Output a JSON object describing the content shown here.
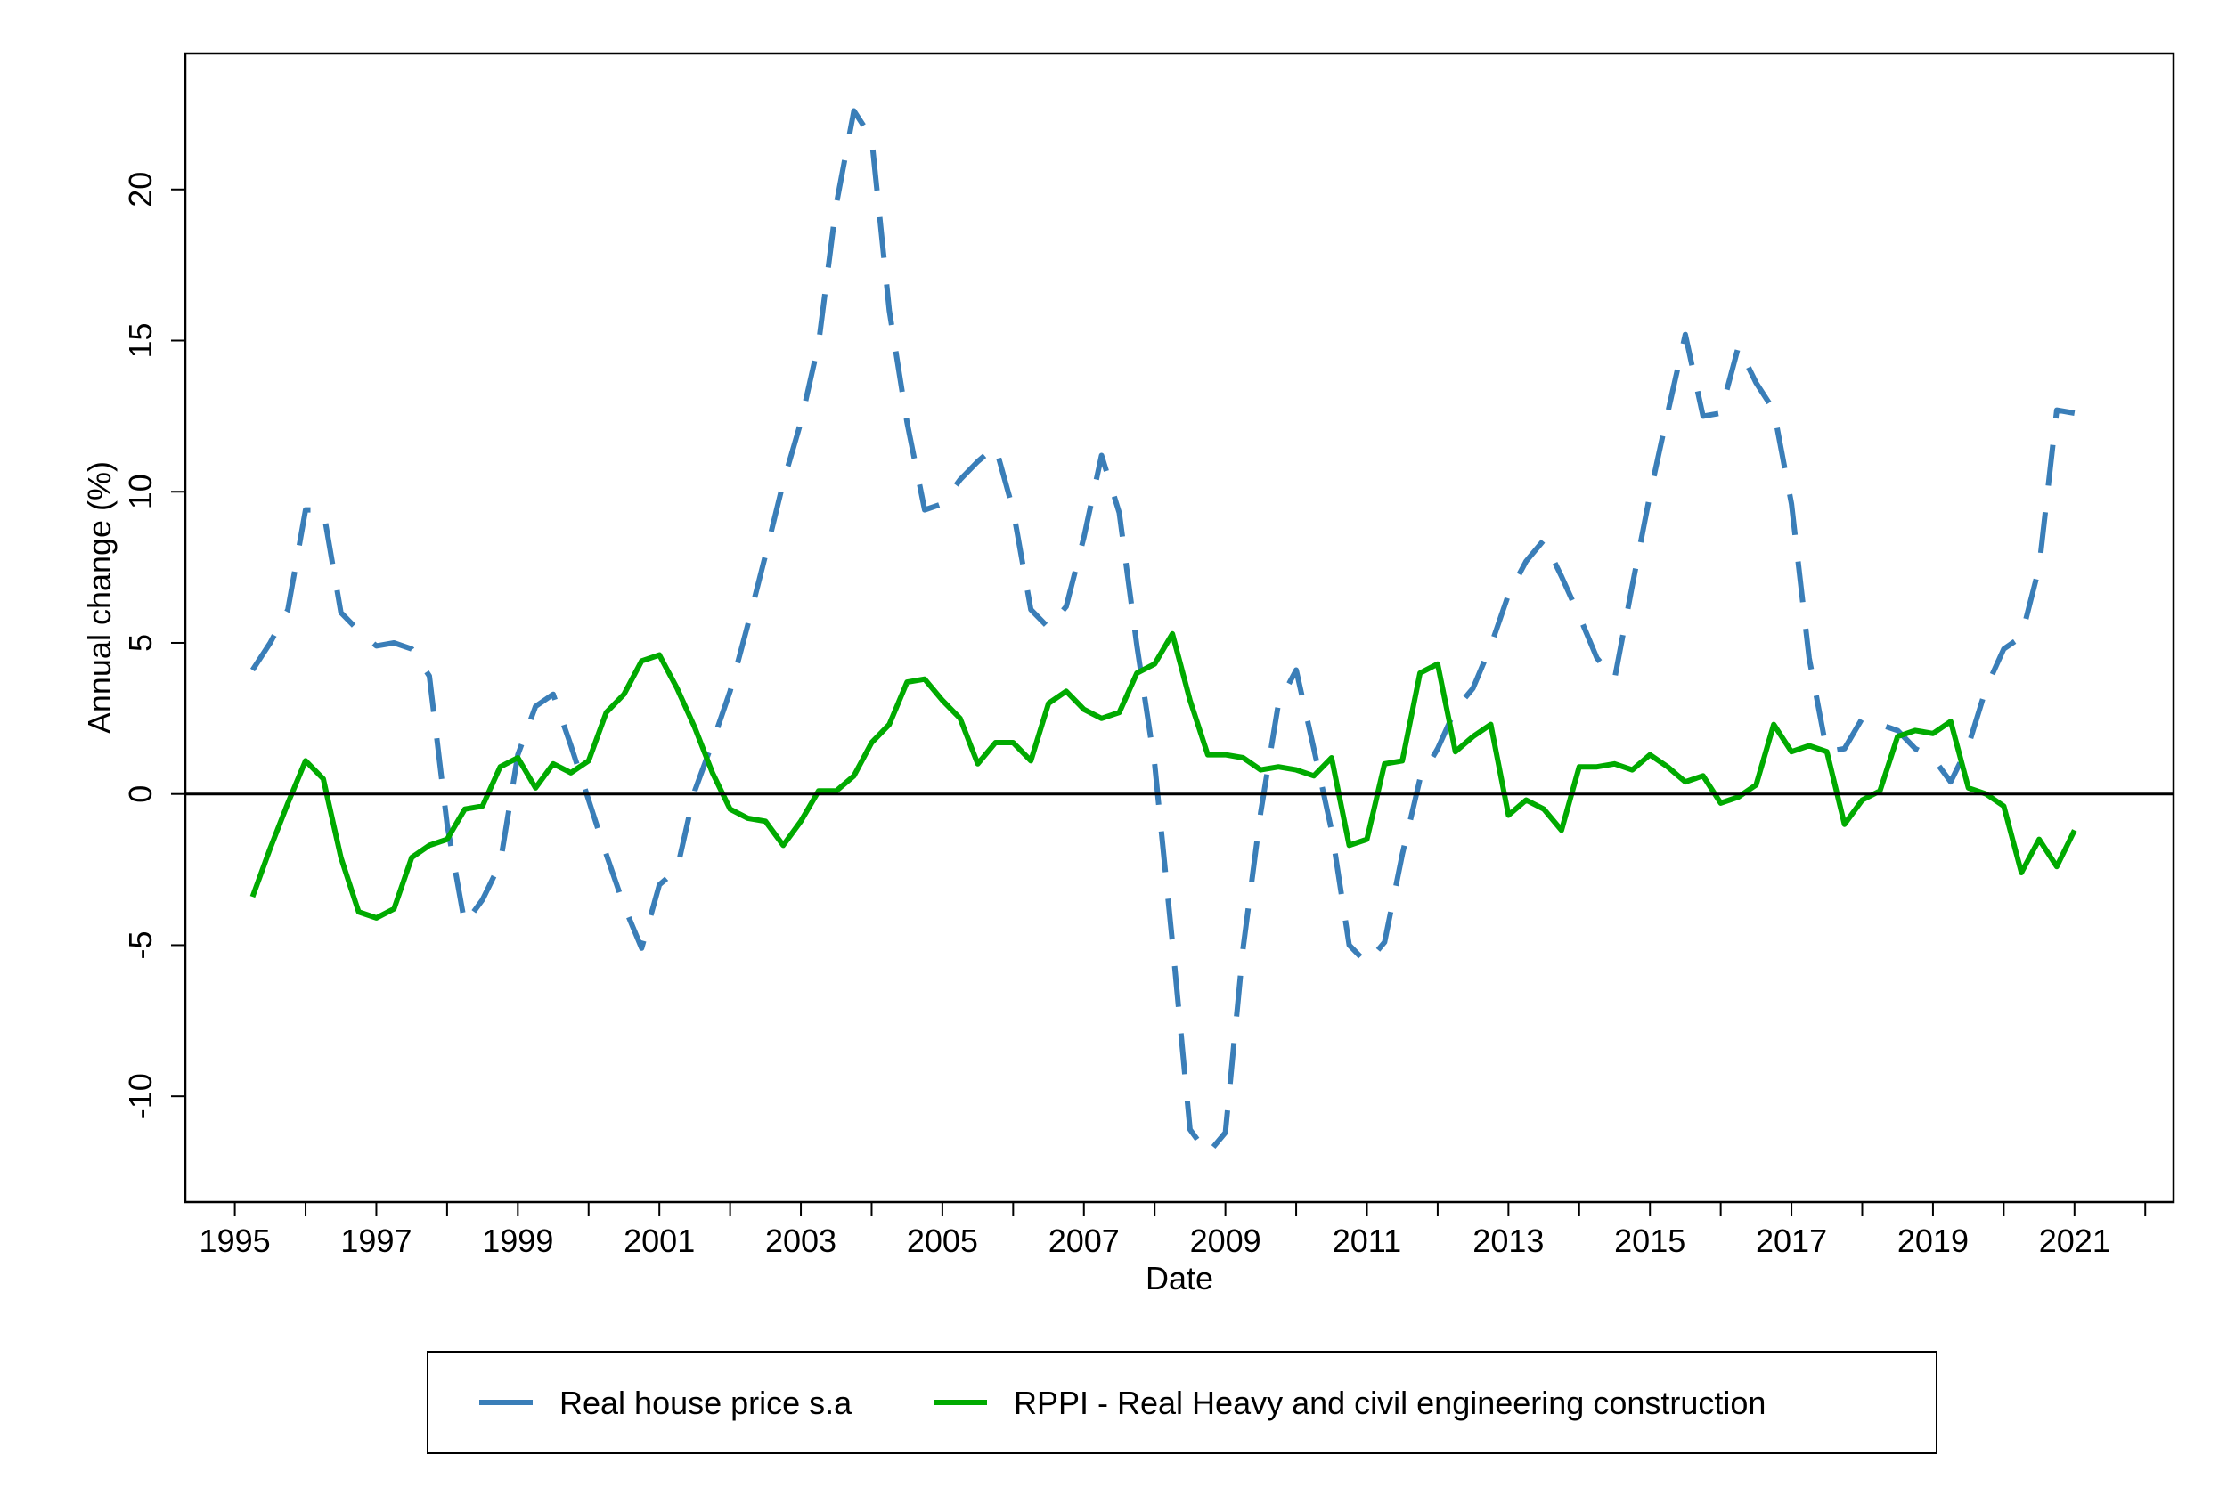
{
  "chart_data": {
    "type": "line",
    "title": "",
    "xlabel": "Date",
    "ylabel": "Annual change (%)",
    "xlim": [
      1994.3,
      2022.4
    ],
    "ylim": [
      -13.5,
      24.5
    ],
    "x_ticks": [
      "1995",
      "1997",
      "1999",
      "2001",
      "2003",
      "2005",
      "2007",
      "2009",
      "2011",
      "2013",
      "2015",
      "2017",
      "2019",
      "2021"
    ],
    "x_tick_values": [
      1995,
      1997,
      1999,
      2001,
      2003,
      2005,
      2007,
      2009,
      2011,
      2013,
      2015,
      2017,
      2019,
      2021
    ],
    "y_ticks": [
      "-10",
      "-5",
      "0",
      "5",
      "10",
      "15",
      "20"
    ],
    "y_tick_values": [
      -10,
      -5,
      0,
      5,
      10,
      15,
      20
    ],
    "reference_line_y": 0,
    "grid": false,
    "legend_position": "bottom",
    "series": [
      {
        "name": "Real house price s.a",
        "color": "#3a7eb8",
        "dash": "dashed",
        "x": [
          1995.25,
          1995.5,
          1995.75,
          1996.0,
          1996.25,
          1996.5,
          1996.75,
          1997.0,
          1997.25,
          1997.5,
          1997.75,
          1998.0,
          1998.25,
          1998.5,
          1998.75,
          1999.0,
          1999.25,
          1999.5,
          1999.75,
          2000.0,
          2000.25,
          2000.5,
          2000.75,
          2001.0,
          2001.25,
          2001.5,
          2001.75,
          2002.0,
          2002.25,
          2002.5,
          2002.75,
          2003.0,
          2003.25,
          2003.5,
          2003.75,
          2004.0,
          2004.25,
          2004.5,
          2004.75,
          2005.0,
          2005.25,
          2005.5,
          2005.75,
          2006.0,
          2006.25,
          2006.5,
          2006.75,
          2007.0,
          2007.25,
          2007.5,
          2007.75,
          2008.0,
          2008.25,
          2008.5,
          2008.75,
          2009.0,
          2009.25,
          2009.5,
          2009.75,
          2010.0,
          2010.25,
          2010.5,
          2010.75,
          2011.0,
          2011.25,
          2011.5,
          2011.75,
          2012.0,
          2012.25,
          2012.5,
          2012.75,
          2013.0,
          2013.25,
          2013.5,
          2013.75,
          2014.0,
          2014.25,
          2014.5,
          2014.75,
          2015.0,
          2015.25,
          2015.5,
          2015.75,
          2016.0,
          2016.25,
          2016.5,
          2016.75,
          2017.0,
          2017.25,
          2017.5,
          2017.75,
          2018.0,
          2018.25,
          2018.5,
          2018.75,
          2019.0,
          2019.25,
          2019.5,
          2019.75,
          2020.0,
          2020.25,
          2020.5,
          2020.75,
          2021.0
        ],
        "y": [
          4.1,
          5.0,
          6.1,
          9.4,
          9.4,
          6.0,
          5.4,
          4.9,
          5.0,
          4.8,
          3.9,
          -1.0,
          -4.3,
          -3.5,
          -2.3,
          1.3,
          2.9,
          3.3,
          1.6,
          -0.2,
          -2.0,
          -3.7,
          -5.1,
          -3.0,
          -2.5,
          0.1,
          1.7,
          3.4,
          5.6,
          7.9,
          10.3,
          12.3,
          14.9,
          19.5,
          22.6,
          21.7,
          16.0,
          12.3,
          9.4,
          9.6,
          10.4,
          11.0,
          11.5,
          9.4,
          6.1,
          5.5,
          6.2,
          8.5,
          11.2,
          9.3,
          4.9,
          1.0,
          -4.9,
          -11.1,
          -11.9,
          -11.2,
          -5.1,
          -0.6,
          3.0,
          4.1,
          1.5,
          -1.2,
          -5.0,
          -5.6,
          -4.9,
          -2.0,
          0.5,
          1.5,
          2.8,
          3.5,
          4.9,
          6.6,
          7.7,
          8.4,
          7.2,
          5.9,
          4.5,
          3.8,
          6.9,
          9.9,
          12.6,
          15.2,
          12.5,
          12.6,
          14.8,
          13.6,
          12.7,
          9.6,
          4.5,
          1.4,
          1.5,
          2.5,
          2.3,
          2.1,
          1.5,
          1.2,
          0.4,
          1.6,
          3.5,
          4.8,
          5.2,
          7.5,
          12.7,
          12.6
        ]
      },
      {
        "name": "RPPI - Real Heavy and civil engineering construction",
        "color": "#00aa00",
        "dash": "solid",
        "x": [
          1995.25,
          1995.5,
          1995.75,
          1996.0,
          1996.25,
          1996.5,
          1996.75,
          1997.0,
          1997.25,
          1997.5,
          1997.75,
          1998.0,
          1998.25,
          1998.5,
          1998.75,
          1999.0,
          1999.25,
          1999.5,
          1999.75,
          2000.0,
          2000.25,
          2000.5,
          2000.75,
          2001.0,
          2001.25,
          2001.5,
          2001.75,
          2002.0,
          2002.25,
          2002.5,
          2002.75,
          2003.0,
          2003.25,
          2003.5,
          2003.75,
          2004.0,
          2004.25,
          2004.5,
          2004.75,
          2005.0,
          2005.25,
          2005.5,
          2005.75,
          2006.0,
          2006.25,
          2006.5,
          2006.75,
          2007.0,
          2007.25,
          2007.5,
          2007.75,
          2008.0,
          2008.25,
          2008.5,
          2008.75,
          2009.0,
          2009.25,
          2009.5,
          2009.75,
          2010.0,
          2010.25,
          2010.5,
          2010.75,
          2011.0,
          2011.25,
          2011.5,
          2011.75,
          2012.0,
          2012.25,
          2012.5,
          2012.75,
          2013.0,
          2013.25,
          2013.5,
          2013.75,
          2014.0,
          2014.25,
          2014.5,
          2014.75,
          2015.0,
          2015.25,
          2015.5,
          2015.75,
          2016.0,
          2016.25,
          2016.5,
          2016.75,
          2017.0,
          2017.25,
          2017.5,
          2017.75,
          2018.0,
          2018.25,
          2018.5,
          2018.75,
          2019.0,
          2019.25,
          2019.5,
          2019.75,
          2020.0,
          2020.25,
          2020.5,
          2020.75,
          2021.0
        ],
        "y": [
          -3.4,
          -1.8,
          -0.3,
          1.1,
          0.5,
          -2.1,
          -3.9,
          -4.1,
          -3.8,
          -2.1,
          -1.7,
          -1.5,
          -0.5,
          -0.4,
          0.9,
          1.2,
          0.2,
          1.0,
          0.7,
          1.1,
          2.7,
          3.3,
          4.4,
          4.6,
          3.5,
          2.2,
          0.7,
          -0.5,
          -0.8,
          -0.9,
          -1.7,
          -0.9,
          0.1,
          0.1,
          0.6,
          1.7,
          2.3,
          3.7,
          3.8,
          3.1,
          2.5,
          1.0,
          1.7,
          1.7,
          1.1,
          3.0,
          3.4,
          2.8,
          2.5,
          2.7,
          4.0,
          4.3,
          5.3,
          3.1,
          1.3,
          1.3,
          1.2,
          0.8,
          0.9,
          0.8,
          0.6,
          1.2,
          -1.7,
          -1.5,
          1.0,
          1.1,
          4.0,
          4.3,
          1.4,
          1.9,
          2.3,
          -0.7,
          -0.2,
          -0.5,
          -1.2,
          0.9,
          0.9,
          1.0,
          0.8,
          1.3,
          0.9,
          0.4,
          0.6,
          -0.3,
          -0.1,
          0.3,
          2.3,
          1.4,
          1.6,
          1.4,
          -1.0,
          -0.2,
          0.1,
          1.9,
          2.1,
          2.0,
          2.4,
          0.2,
          0.0,
          -0.4,
          -2.6,
          -1.5,
          -2.4,
          -1.2
        ]
      }
    ]
  }
}
